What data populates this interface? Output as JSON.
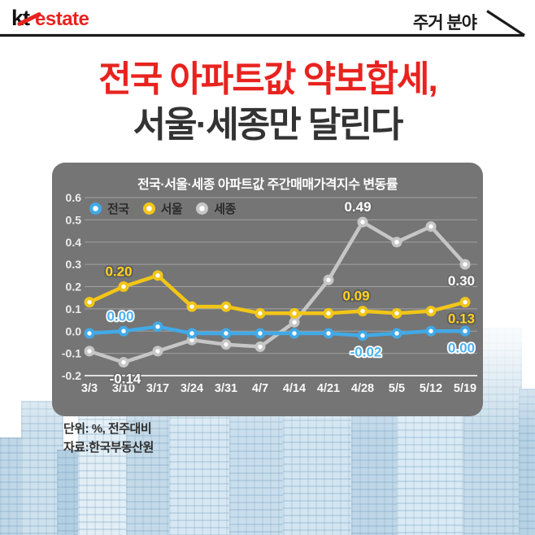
{
  "header": {
    "logo_kt": "kt",
    "logo_estate": "estate",
    "category": "주거 분야"
  },
  "title": {
    "line1": "전국 아파트값 약보합세,",
    "line2": "서울·세종만 달린다"
  },
  "chart_data": {
    "type": "line",
    "title": "전국·서울·세종 아파트값 주간매매가격지수 변동률",
    "categories": [
      "3/3",
      "3/10",
      "3/17",
      "3/24",
      "3/31",
      "4/7",
      "4/14",
      "4/21",
      "4/28",
      "5/5",
      "5/12",
      "5/19"
    ],
    "series": [
      {
        "name": "전국",
        "color": "#42a9e6",
        "label_color": "#4db2f0",
        "label_outline": "#ffffff",
        "values": [
          -0.01,
          0.0,
          0.02,
          -0.01,
          -0.01,
          -0.01,
          -0.01,
          -0.01,
          -0.02,
          -0.01,
          0.0,
          0.0
        ]
      },
      {
        "name": "서울",
        "color": "#f2c617",
        "label_color": "#ffd21f",
        "label_outline": "#5a5a5a",
        "values": [
          0.13,
          0.2,
          0.25,
          0.11,
          0.11,
          0.08,
          0.08,
          0.08,
          0.09,
          0.08,
          0.09,
          0.13
        ]
      },
      {
        "name": "세종",
        "color": "#c6c6c6",
        "label_color": "#ffffff",
        "label_outline": "#6a6a6a",
        "values": [
          -0.09,
          -0.14,
          -0.09,
          -0.04,
          -0.06,
          -0.07,
          0.04,
          0.23,
          0.49,
          0.4,
          0.47,
          0.3
        ]
      }
    ],
    "ylim": [
      -0.2,
      0.6
    ],
    "ytick_step": 0.1,
    "grid": true,
    "legend_position": "top-left-inside",
    "panel_bg": "#757575",
    "annotations": [
      {
        "series": 0,
        "index": 1,
        "text": "0.00",
        "pos": "above",
        "dx": -4
      },
      {
        "series": 1,
        "index": 1,
        "text": "0.20",
        "pos": "above",
        "dx": -6
      },
      {
        "series": 2,
        "index": 1,
        "text": "-0.14",
        "pos": "below",
        "dx": 2
      },
      {
        "series": 2,
        "index": 8,
        "text": "0.49",
        "pos": "above",
        "dx": -6
      },
      {
        "series": 1,
        "index": 8,
        "text": "0.09",
        "pos": "above",
        "dx": -8
      },
      {
        "series": 0,
        "index": 8,
        "text": "-0.02",
        "pos": "below",
        "dx": 4
      },
      {
        "series": 2,
        "index": 11,
        "text": "0.30",
        "pos": "below",
        "align": "end",
        "dx": 12
      },
      {
        "series": 1,
        "index": 11,
        "text": "0.13",
        "pos": "below",
        "align": "end",
        "dx": 12
      },
      {
        "series": 0,
        "index": 11,
        "text": "0.00",
        "pos": "below",
        "align": "end",
        "dx": 12
      }
    ]
  },
  "footnote": {
    "unit": "단위: %, 전주대비",
    "source": "자료:한국부동산원"
  },
  "colors": {
    "accent_red": "#e8231f",
    "title_dark": "#333333",
    "panel_gray": "#757575"
  }
}
